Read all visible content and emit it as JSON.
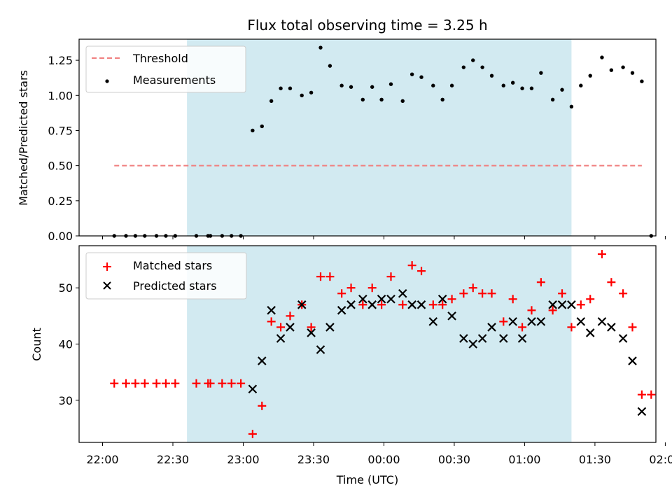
{
  "chart_data": [
    {
      "type": "scatter",
      "title": "Flux total observing time = 3.25 h",
      "xlabel": "",
      "ylabel": "Matched/Predicted stars",
      "ylim": [
        0,
        1.4
      ],
      "yticks": [
        "0.00",
        "0.25",
        "0.50",
        "0.75",
        "1.00",
        "1.25"
      ],
      "xlim_minutes": [
        -130,
        116
      ],
      "shaded_interval_minutes": [
        -84,
        80
      ],
      "shade_color": "#add8e6",
      "threshold": {
        "name": "Threshold",
        "y": 0.5,
        "x_minutes": [
          -115,
          110
        ],
        "color": "#f08080",
        "style": "dashed"
      },
      "legend": {
        "position": "upper left",
        "entries": [
          "Threshold",
          "Measurements"
        ]
      },
      "series": [
        {
          "name": "Measurements",
          "color": "#000000",
          "marker": "dot",
          "x_minutes": [
            -115,
            -110,
            -106,
            -102,
            -97,
            -93,
            -89,
            -80,
            -75,
            -74,
            -69,
            -65,
            -61,
            -56,
            -52,
            -48,
            -44,
            -40,
            -35,
            -31,
            -27,
            -23,
            -18,
            -14,
            -9,
            -5,
            -1,
            3,
            8,
            12,
            16,
            21,
            25,
            29,
            34,
            38,
            42,
            46,
            51,
            55,
            59,
            63,
            67,
            72,
            76,
            80,
            84,
            88,
            93,
            97,
            102,
            106,
            110
          ],
          "y": [
            0,
            0,
            0,
            0,
            0,
            0,
            0,
            0,
            0,
            0,
            0,
            0,
            0,
            0.75,
            0.78,
            0.96,
            1.05,
            1.05,
            1.0,
            1.02,
            1.34,
            1.21,
            1.07,
            1.06,
            0.97,
            1.06,
            0.97,
            1.08,
            0.96,
            1.15,
            1.13,
            1.07,
            0.97,
            1.07,
            1.2,
            1.25,
            1.2,
            1.14,
            1.07,
            1.09,
            1.05,
            1.05,
            1.16,
            0.97,
            1.04,
            0.92,
            1.07,
            1.14,
            1.27,
            1.18,
            1.2,
            1.16,
            1.1
          ]
        }
      ]
    },
    {
      "type": "scatter",
      "xlabel": "Time (UTC)",
      "ylabel": "Count",
      "ylim": [
        22.5,
        57.5
      ],
      "yticks": [
        "30",
        "40",
        "50"
      ],
      "xticks": [
        "22:00",
        "22:30",
        "23:00",
        "23:30",
        "00:00",
        "00:30",
        "01:00",
        "01:30",
        "02:00"
      ],
      "xlim_minutes": [
        -130,
        116
      ],
      "shaded_interval_minutes": [
        -84,
        80
      ],
      "legend": {
        "position": "upper left",
        "entries": [
          "Matched stars",
          "Predicted stars"
        ]
      },
      "series": [
        {
          "name": "Matched stars",
          "color": "#ff0000",
          "marker": "plus",
          "x_minutes": [
            -115,
            -110,
            -106,
            -102,
            -97,
            -93,
            -89,
            -80,
            -75,
            -74,
            -69,
            -65,
            -61,
            -56,
            -52,
            -48,
            -44,
            -40,
            -35,
            -31,
            -27,
            -23,
            -18,
            -14,
            -9,
            -5,
            -1,
            3,
            8,
            12,
            16,
            21,
            25,
            29,
            34,
            38,
            42,
            46,
            51,
            55,
            59,
            63,
            67,
            72,
            76,
            80,
            84,
            88,
            93,
            97,
            102,
            106,
            110
          ],
          "y": [
            33,
            33,
            33,
            33,
            33,
            33,
            33,
            33,
            33,
            33,
            33,
            33,
            33,
            24,
            29,
            44,
            43,
            45,
            47,
            43,
            52,
            52,
            49,
            50,
            47,
            50,
            47,
            52,
            47,
            54,
            53,
            47,
            47,
            48,
            49,
            50,
            49,
            49,
            44,
            48,
            43,
            46,
            51,
            46,
            49,
            43,
            47,
            48,
            56,
            51,
            49,
            43,
            31
          ]
        },
        {
          "name": "Predicted stars",
          "color": "#000000",
          "marker": "x",
          "x_minutes": [
            -56,
            -52,
            -48,
            -44,
            -40,
            -35,
            -31,
            -27,
            -23,
            -18,
            -14,
            -9,
            -5,
            -1,
            3,
            8,
            12,
            16,
            21,
            25,
            29,
            34,
            38,
            42,
            46,
            51,
            55,
            59,
            63,
            67,
            72,
            76,
            80,
            84,
            88,
            93,
            97,
            102,
            106
          ],
          "y": [
            32,
            37,
            46,
            41,
            43,
            47,
            42,
            39,
            43,
            46,
            47,
            48,
            47,
            48,
            48,
            49,
            47,
            47,
            44,
            48,
            45,
            41,
            40,
            41,
            43,
            41,
            44,
            41,
            44,
            44,
            47,
            47,
            47,
            44,
            42,
            44,
            43,
            41,
            37
          ]
        }
      ]
    }
  ],
  "extra_right_points": {
    "note_free": true,
    "matched_x_minutes": [
      114
    ],
    "matched_y": [
      31
    ],
    "predicted_x_minutes": [
      110
    ],
    "predicted_y": [
      28
    ],
    "measurement_x_minutes": [
      114
    ],
    "measurement_y": [
      0
    ]
  }
}
